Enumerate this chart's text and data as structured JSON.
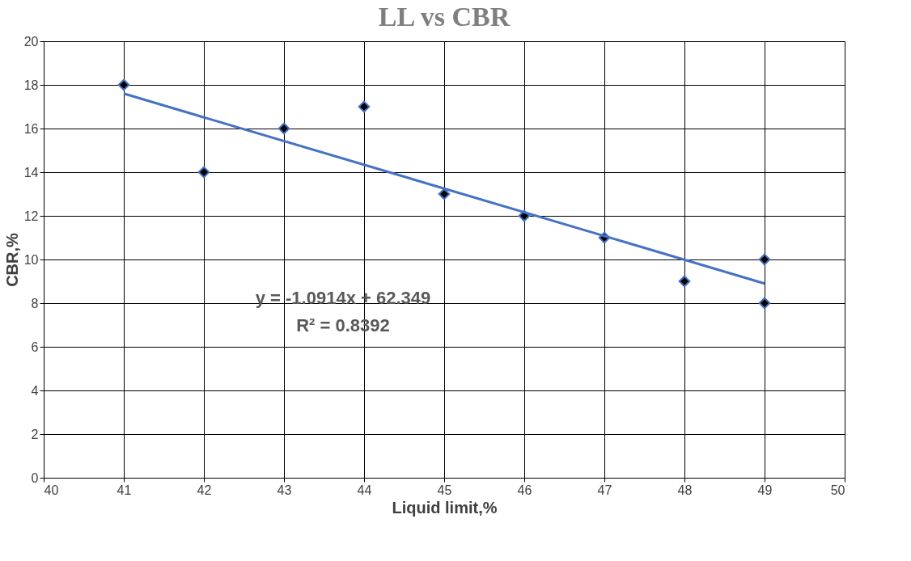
{
  "chart_data": {
    "type": "scatter",
    "title": "LL vs CBR",
    "xlabel": "Liquid limit,%",
    "ylabel": "CBR,%",
    "xlim": [
      40,
      50
    ],
    "xticks": [
      40,
      41,
      42,
      43,
      44,
      45,
      46,
      47,
      48,
      49,
      50
    ],
    "ylim": [
      0,
      20
    ],
    "yticks": [
      0,
      2,
      4,
      6,
      8,
      10,
      12,
      14,
      16,
      18,
      20
    ],
    "grid": true,
    "series": [
      {
        "color": "#000000",
        "marker": "diamond",
        "x": [
          41,
          42,
          43,
          44,
          45,
          46,
          47,
          48,
          49,
          49
        ],
        "values": [
          18,
          14,
          16,
          17,
          13,
          12,
          11,
          9,
          10,
          8
        ]
      },
      {
        "type": "line",
        "color": "#4472c4",
        "x": [
          41,
          49
        ],
        "values": [
          17.6,
          8.9
        ]
      }
    ],
    "annotations": [
      "y = -1.0914x + 62.349",
      "R² = 0.8392"
    ]
  }
}
